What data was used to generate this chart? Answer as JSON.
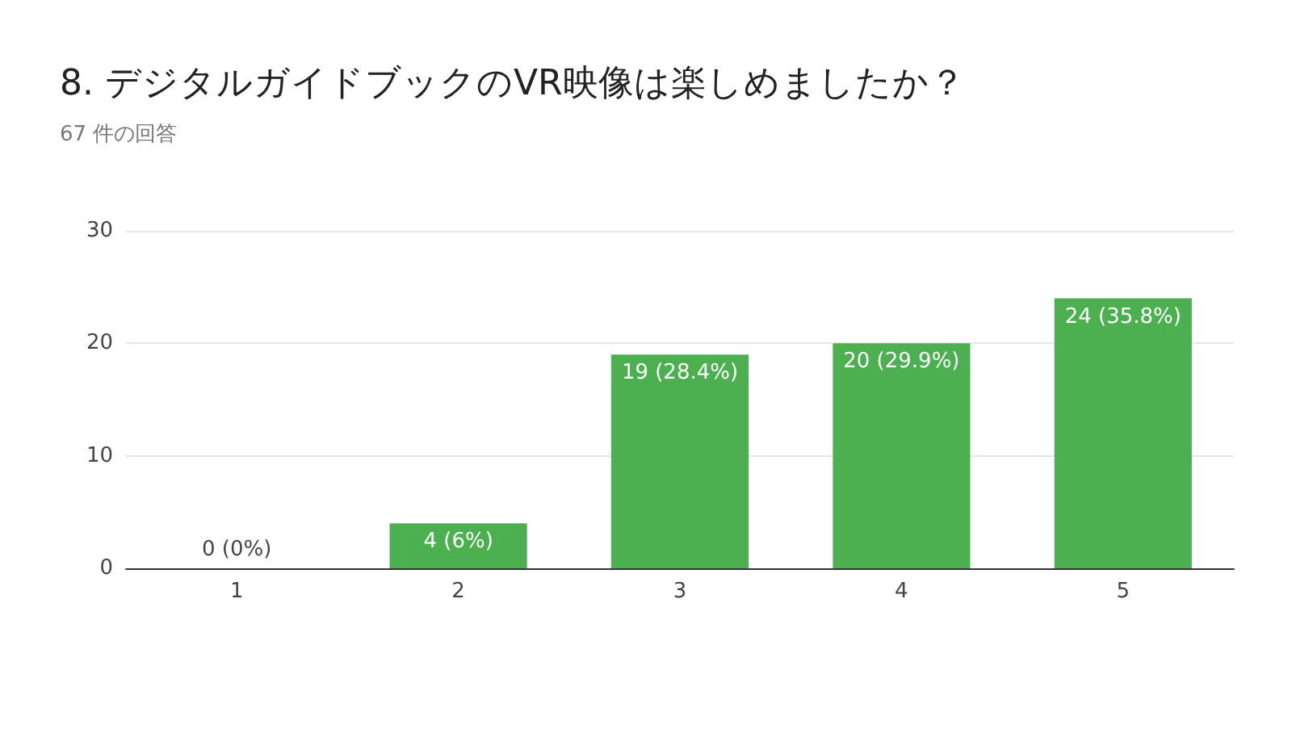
{
  "chart_data": {
    "type": "bar",
    "title": "8. デジタルガイドブックのVR映像は楽しめましたか？",
    "subtitle": "67 件の回答",
    "categories": [
      "1",
      "2",
      "3",
      "4",
      "5"
    ],
    "values": [
      0,
      4,
      19,
      20,
      24
    ],
    "value_labels": [
      "0 (0%)",
      "4 (6%)",
      "19 (28.4%)",
      "20 (29.9%)",
      "24 (35.8%)"
    ],
    "color": "#4caf50",
    "ylim": [
      0,
      30
    ],
    "yticks": [
      0,
      10,
      20,
      30
    ],
    "grid": "y"
  }
}
